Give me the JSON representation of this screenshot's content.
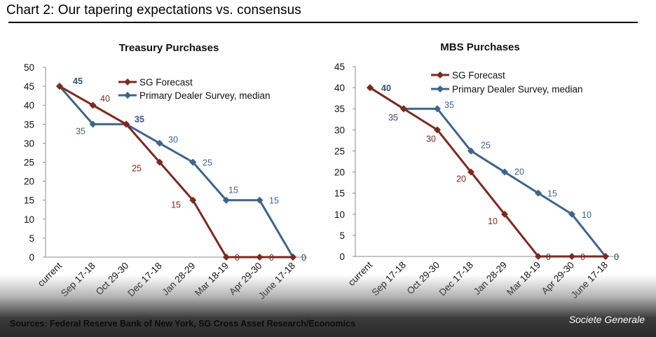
{
  "header": {
    "title": "Chart 2: Our tapering expectations vs. consensus"
  },
  "footer": {
    "sources": "Sources: Federal Reserve Bank of New York, SG Cross Asset Research/Economics",
    "brand": "Societe Generale"
  },
  "colors": {
    "sg_forecast": "#7b2a20",
    "dealer_survey": "#3e648c",
    "axis": "#8c8c8c",
    "text": "#111111"
  },
  "chart_data": [
    {
      "type": "line",
      "title": "Treasury Purchases",
      "categories": [
        "current",
        "Sep 17-18",
        "Oct 29-30",
        "Dec 17-18",
        "Jan 28-29",
        "Mar 18-19",
        "Apr 29-30",
        "June 17-18"
      ],
      "ylim": [
        0,
        50
      ],
      "yticks": [
        0,
        5,
        10,
        15,
        20,
        25,
        30,
        35,
        40,
        45,
        50
      ],
      "legend_position": "top-right",
      "series": [
        {
          "name": "SG Forecast",
          "values": [
            45,
            40,
            35,
            25,
            15,
            0,
            0,
            0
          ],
          "labels": [
            "45",
            "40",
            "35",
            "25",
            "15",
            "0",
            "0",
            "0"
          ]
        },
        {
          "name": "Primary Dealer Survey, median",
          "values": [
            45,
            35,
            35,
            30,
            25,
            15,
            15,
            0
          ],
          "labels": [
            "45",
            "35",
            "35",
            "30",
            "25",
            "15",
            "15",
            "0"
          ]
        }
      ]
    },
    {
      "type": "line",
      "title": "MBS Purchases",
      "categories": [
        "current",
        "Sep 17-18",
        "Oct 29-30",
        "Dec 17-18",
        "Jan 28-29",
        "Mar 18-19",
        "Apr 29-30",
        "June 17-18"
      ],
      "ylim": [
        0,
        45
      ],
      "yticks": [
        0,
        5,
        10,
        15,
        20,
        25,
        30,
        35,
        40,
        45
      ],
      "legend_position": "top-right",
      "series": [
        {
          "name": "SG Forecast",
          "values": [
            40,
            35,
            30,
            20,
            10,
            0,
            0,
            0
          ],
          "labels": [
            "40",
            "35",
            "30",
            "20",
            "10",
            "0",
            "0",
            "0"
          ]
        },
        {
          "name": "Primary Dealer Survey, median",
          "values": [
            40,
            35,
            35,
            25,
            20,
            15,
            10,
            0
          ],
          "labels": [
            "40",
            "35",
            "35",
            "25",
            "20",
            "15",
            "10",
            "0"
          ]
        }
      ]
    }
  ]
}
